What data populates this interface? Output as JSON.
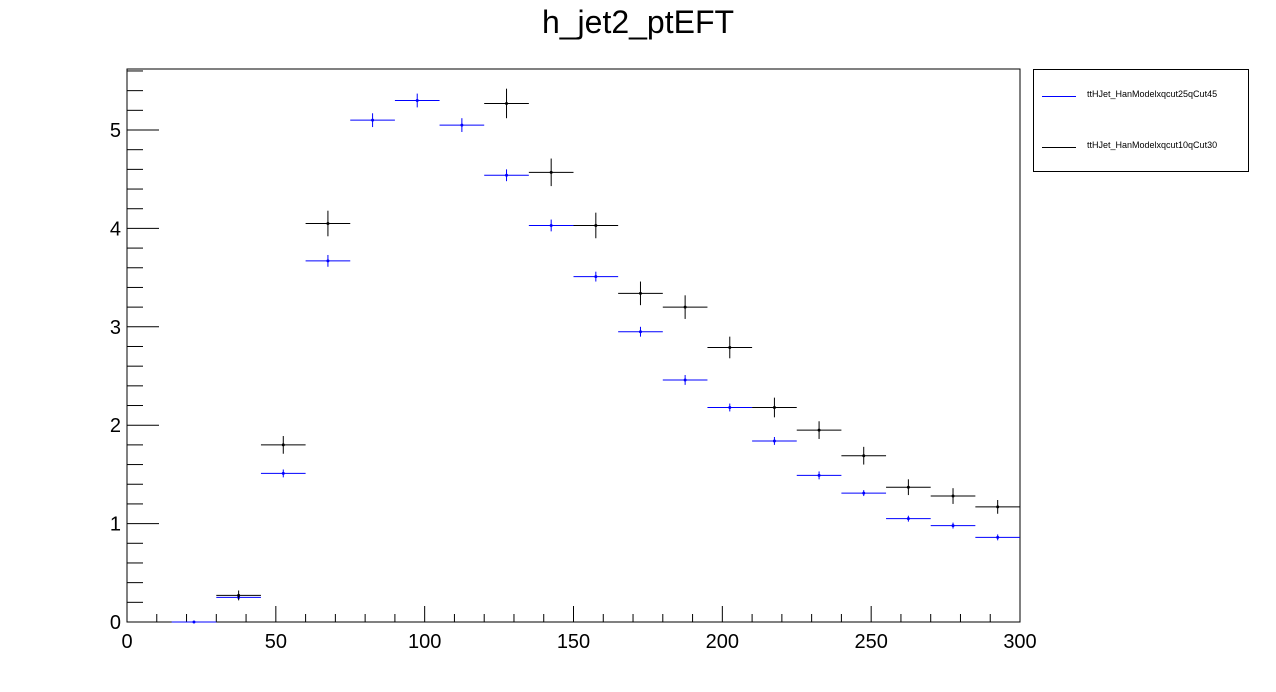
{
  "chart_data": {
    "type": "scatter",
    "title": "h_jet2_ptEFT",
    "xlabel": "",
    "ylabel": "",
    "xlim": [
      0,
      300
    ],
    "ylim": [
      0,
      5.62
    ],
    "x_ticks": [
      0,
      50,
      100,
      150,
      200,
      250,
      300
    ],
    "y_ticks": [
      0,
      1,
      2,
      3,
      4,
      5
    ],
    "bin_width": 15,
    "legend_position": "right",
    "series": [
      {
        "name": "ttHJet_HanModelxqcut25qCut45",
        "color": "#0000ff",
        "points": [
          {
            "x": 22.5,
            "y": 0.0,
            "err": 0.0
          },
          {
            "x": 37.5,
            "y": 0.25,
            "err": 0.02
          },
          {
            "x": 52.5,
            "y": 1.51,
            "err": 0.04
          },
          {
            "x": 67.5,
            "y": 3.67,
            "err": 0.06
          },
          {
            "x": 82.5,
            "y": 5.1,
            "err": 0.07
          },
          {
            "x": 97.5,
            "y": 5.3,
            "err": 0.07
          },
          {
            "x": 112.5,
            "y": 5.05,
            "err": 0.07
          },
          {
            "x": 127.5,
            "y": 4.54,
            "err": 0.06
          },
          {
            "x": 142.5,
            "y": 4.03,
            "err": 0.06
          },
          {
            "x": 157.5,
            "y": 3.51,
            "err": 0.05
          },
          {
            "x": 172.5,
            "y": 2.95,
            "err": 0.05
          },
          {
            "x": 187.5,
            "y": 2.46,
            "err": 0.05
          },
          {
            "x": 202.5,
            "y": 2.18,
            "err": 0.04
          },
          {
            "x": 217.5,
            "y": 1.84,
            "err": 0.04
          },
          {
            "x": 232.5,
            "y": 1.49,
            "err": 0.04
          },
          {
            "x": 247.5,
            "y": 1.31,
            "err": 0.03
          },
          {
            "x": 262.5,
            "y": 1.05,
            "err": 0.03
          },
          {
            "x": 277.5,
            "y": 0.98,
            "err": 0.03
          },
          {
            "x": 292.5,
            "y": 0.86,
            "err": 0.03
          }
        ]
      },
      {
        "name": "ttHJet_HanModelxqcut10qCut30",
        "color": "#000000",
        "points": [
          {
            "x": 37.5,
            "y": 0.27,
            "err": 0.05
          },
          {
            "x": 52.5,
            "y": 1.8,
            "err": 0.09
          },
          {
            "x": 67.5,
            "y": 4.05,
            "err": 0.13
          },
          {
            "x": 127.5,
            "y": 5.27,
            "err": 0.15
          },
          {
            "x": 142.5,
            "y": 4.57,
            "err": 0.14
          },
          {
            "x": 157.5,
            "y": 4.03,
            "err": 0.13
          },
          {
            "x": 172.5,
            "y": 3.34,
            "err": 0.12
          },
          {
            "x": 187.5,
            "y": 3.2,
            "err": 0.12
          },
          {
            "x": 202.5,
            "y": 2.79,
            "err": 0.11
          },
          {
            "x": 217.5,
            "y": 2.18,
            "err": 0.1
          },
          {
            "x": 232.5,
            "y": 1.95,
            "err": 0.09
          },
          {
            "x": 247.5,
            "y": 1.69,
            "err": 0.09
          },
          {
            "x": 262.5,
            "y": 1.37,
            "err": 0.08
          },
          {
            "x": 277.5,
            "y": 1.28,
            "err": 0.08
          },
          {
            "x": 292.5,
            "y": 1.17,
            "err": 0.07
          }
        ]
      }
    ]
  }
}
